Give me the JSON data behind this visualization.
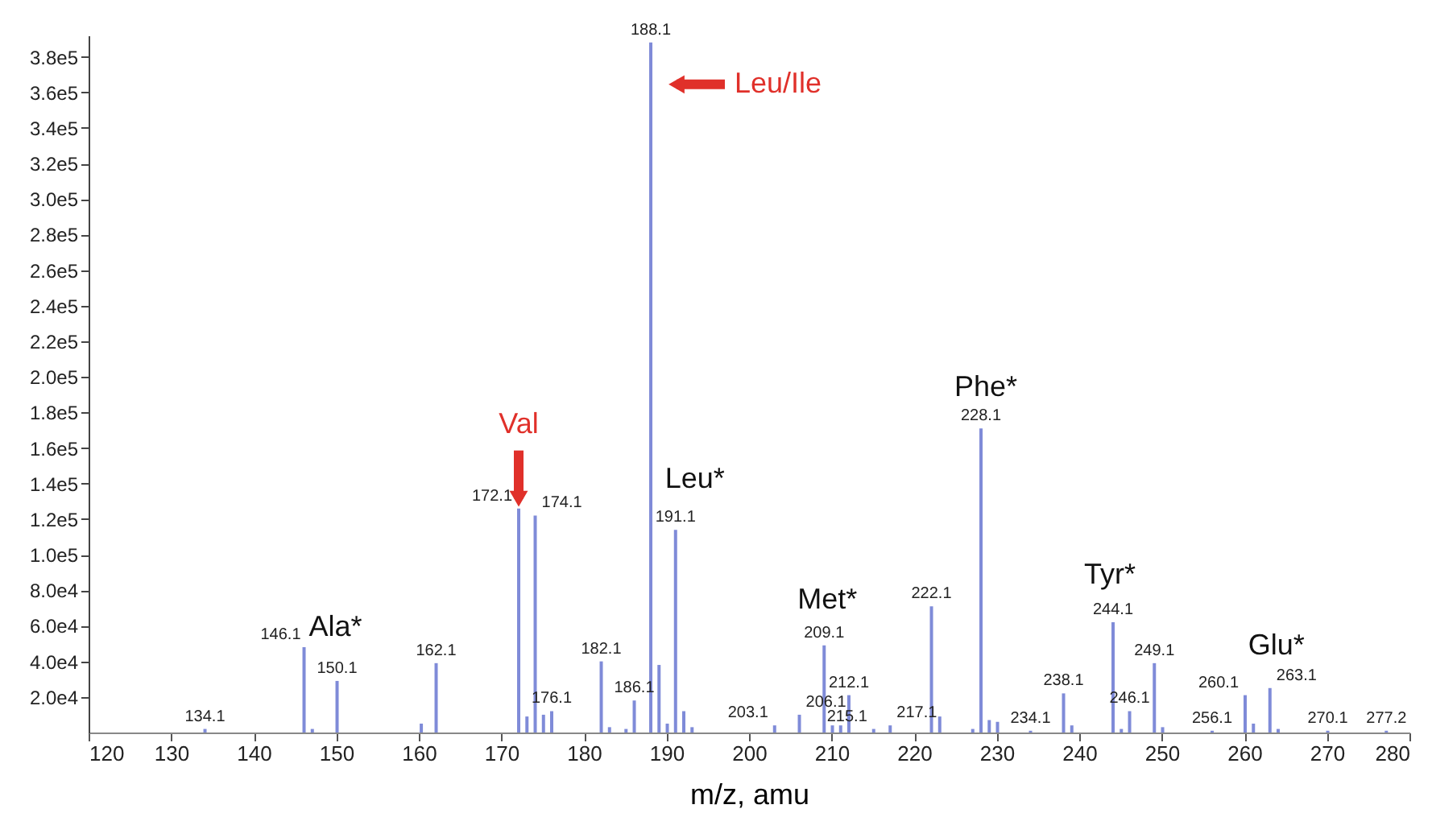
{
  "chart_data": {
    "type": "bar",
    "xlabel": "m/z, amu",
    "x": [
      134.1,
      146.1,
      147.1,
      150.1,
      160.3,
      162.1,
      172.1,
      173.1,
      174.1,
      175.1,
      176.1,
      182.1,
      183.1,
      185.1,
      186.1,
      188.1,
      189.1,
      190.1,
      191.1,
      192.1,
      193.1,
      203.1,
      206.1,
      209.1,
      210.1,
      211.1,
      212.1,
      215.1,
      217.1,
      222.1,
      223.1,
      227.1,
      228.1,
      229.1,
      230.1,
      234.1,
      238.1,
      239.1,
      244.1,
      245.1,
      246.1,
      249.1,
      250.1,
      256.1,
      260.1,
      261.1,
      263.1,
      264.1,
      270.1,
      277.2
    ],
    "series": [
      {
        "color": "#7f8bd8",
        "values": [
          2000,
          48000,
          2000,
          29000,
          5000,
          39000,
          126000,
          9000,
          122000,
          10000,
          12000,
          40000,
          3000,
          2000,
          18000,
          388000,
          38000,
          5000,
          114000,
          12000,
          3000,
          4000,
          10000,
          49000,
          4000,
          4000,
          21000,
          2000,
          4000,
          71000,
          9000,
          2000,
          171000,
          7000,
          6000,
          1000,
          22000,
          4000,
          62000,
          2000,
          12000,
          39000,
          3000,
          1000,
          21000,
          5000,
          25000,
          2000,
          1000,
          1000
        ]
      }
    ],
    "xlim": [
      120,
      280
    ],
    "xticks": [
      120,
      130,
      140,
      150,
      160,
      170,
      180,
      190,
      200,
      210,
      220,
      230,
      240,
      250,
      260,
      270,
      280
    ],
    "ylim": [
      0,
      392000
    ],
    "yticks": [
      {
        "value": 20000,
        "label": "2.0e4"
      },
      {
        "value": 40000,
        "label": "4.0e4"
      },
      {
        "value": 60000,
        "label": "6.0e4"
      },
      {
        "value": 80000,
        "label": "8.0e4"
      },
      {
        "value": 100000,
        "label": "1.0e5"
      },
      {
        "value": 120000,
        "label": "1.2e5"
      },
      {
        "value": 140000,
        "label": "1.4e5"
      },
      {
        "value": 160000,
        "label": "1.6e5"
      },
      {
        "value": 180000,
        "label": "1.8e5"
      },
      {
        "value": 200000,
        "label": "2.0e5"
      },
      {
        "value": 220000,
        "label": "2.2e5"
      },
      {
        "value": 240000,
        "label": "2.4e5"
      },
      {
        "value": 260000,
        "label": "2.6e5"
      },
      {
        "value": 280000,
        "label": "2.8e5"
      },
      {
        "value": 300000,
        "label": "3.0e5"
      },
      {
        "value": 320000,
        "label": "3.2e5"
      },
      {
        "value": 340000,
        "label": "3.4e5"
      },
      {
        "value": 360000,
        "label": "3.6e5"
      },
      {
        "value": 380000,
        "label": "3.8e5"
      }
    ],
    "grid": false,
    "annotations": [
      {
        "text": "Ala*",
        "x": 146.1,
        "y": 48000
      },
      {
        "text": "Val",
        "x": 172.1,
        "y": 126000
      },
      {
        "text": "Leu/Ile",
        "x": 188.1,
        "y": 388000
      },
      {
        "text": "Leu*",
        "x": 191.1,
        "y": 114000
      },
      {
        "text": "Met*",
        "x": 209.1,
        "y": 49000
      },
      {
        "text": "Phe*",
        "x": 228.1,
        "y": 171000
      },
      {
        "text": "Tyr*",
        "x": 244.1,
        "y": 62000
      },
      {
        "text": "Glu*",
        "x": 263.1,
        "y": 25000
      },
      {
        "text": "134.1",
        "x": 134.1,
        "y": 2000
      },
      {
        "text": "146.1",
        "x": 146.1,
        "y": 48000
      },
      {
        "text": "150.1",
        "x": 150.1,
        "y": 29000
      },
      {
        "text": "162.1",
        "x": 162.1,
        "y": 39000
      },
      {
        "text": "172.1",
        "x": 172.1,
        "y": 126000
      },
      {
        "text": "174.1",
        "x": 174.1,
        "y": 122000
      },
      {
        "text": "176.1",
        "x": 176.1,
        "y": 12000
      },
      {
        "text": "182.1",
        "x": 182.1,
        "y": 40000
      },
      {
        "text": "186.1",
        "x": 186.1,
        "y": 18000
      },
      {
        "text": "188.1",
        "x": 188.1,
        "y": 388000
      },
      {
        "text": "191.1",
        "x": 191.1,
        "y": 114000
      },
      {
        "text": "203.1",
        "x": 203.1,
        "y": 4000
      },
      {
        "text": "206.1",
        "x": 206.1,
        "y": 10000
      },
      {
        "text": "209.1",
        "x": 209.1,
        "y": 49000
      },
      {
        "text": "212.1",
        "x": 212.1,
        "y": 21000
      },
      {
        "text": "215.1",
        "x": 215.1,
        "y": 2000
      },
      {
        "text": "217.1",
        "x": 217.1,
        "y": 4000
      },
      {
        "text": "222.1",
        "x": 222.1,
        "y": 71000
      },
      {
        "text": "228.1",
        "x": 228.1,
        "y": 171000
      },
      {
        "text": "234.1",
        "x": 234.1,
        "y": 1000
      },
      {
        "text": "238.1",
        "x": 238.1,
        "y": 22000
      },
      {
        "text": "244.1",
        "x": 244.1,
        "y": 62000
      },
      {
        "text": "246.1",
        "x": 246.1,
        "y": 12000
      },
      {
        "text": "249.1",
        "x": 249.1,
        "y": 39000
      },
      {
        "text": "256.1",
        "x": 256.1,
        "y": 1000
      },
      {
        "text": "260.1",
        "x": 260.1,
        "y": 21000
      },
      {
        "text": "263.1",
        "x": 263.1,
        "y": 25000
      },
      {
        "text": "270.1",
        "x": 270.1,
        "y": 1000
      },
      {
        "text": "277.2",
        "x": 277.2,
        "y": 1000
      }
    ]
  }
}
